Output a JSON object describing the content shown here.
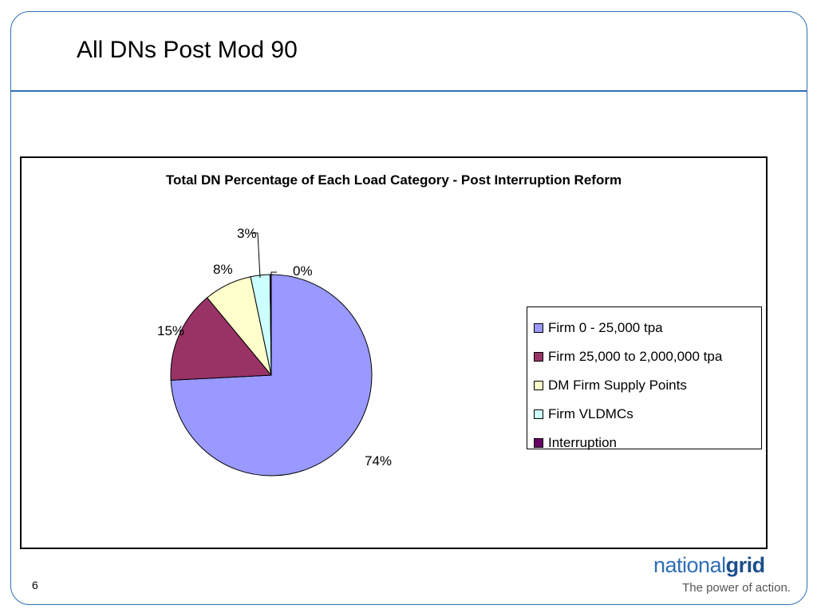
{
  "slide": {
    "title": "All DNs Post Mod 90",
    "page_number": "6"
  },
  "brand": {
    "logo_prefix": "national",
    "logo_suffix": "grid",
    "tagline": "The power of action."
  },
  "chart_data": {
    "type": "pie",
    "title": "Total DN Percentage of Each Load Category - Post Interruption Reform",
    "legend_position": "right",
    "categories": [
      "Firm 0 - 25,000 tpa",
      "Firm 25,000 to 2,000,000 tpa",
      "DM Firm Supply Points",
      "Firm VLDMCs",
      "Interruption"
    ],
    "values": [
      74.2,
      14.8,
      7.7,
      3.1,
      0.2
    ],
    "data_labels": [
      "74%",
      "15%",
      "8%",
      "3%",
      "0%"
    ],
    "colors": [
      "#9999ff",
      "#993366",
      "#ffffcc",
      "#ccffff",
      "#660066"
    ]
  }
}
